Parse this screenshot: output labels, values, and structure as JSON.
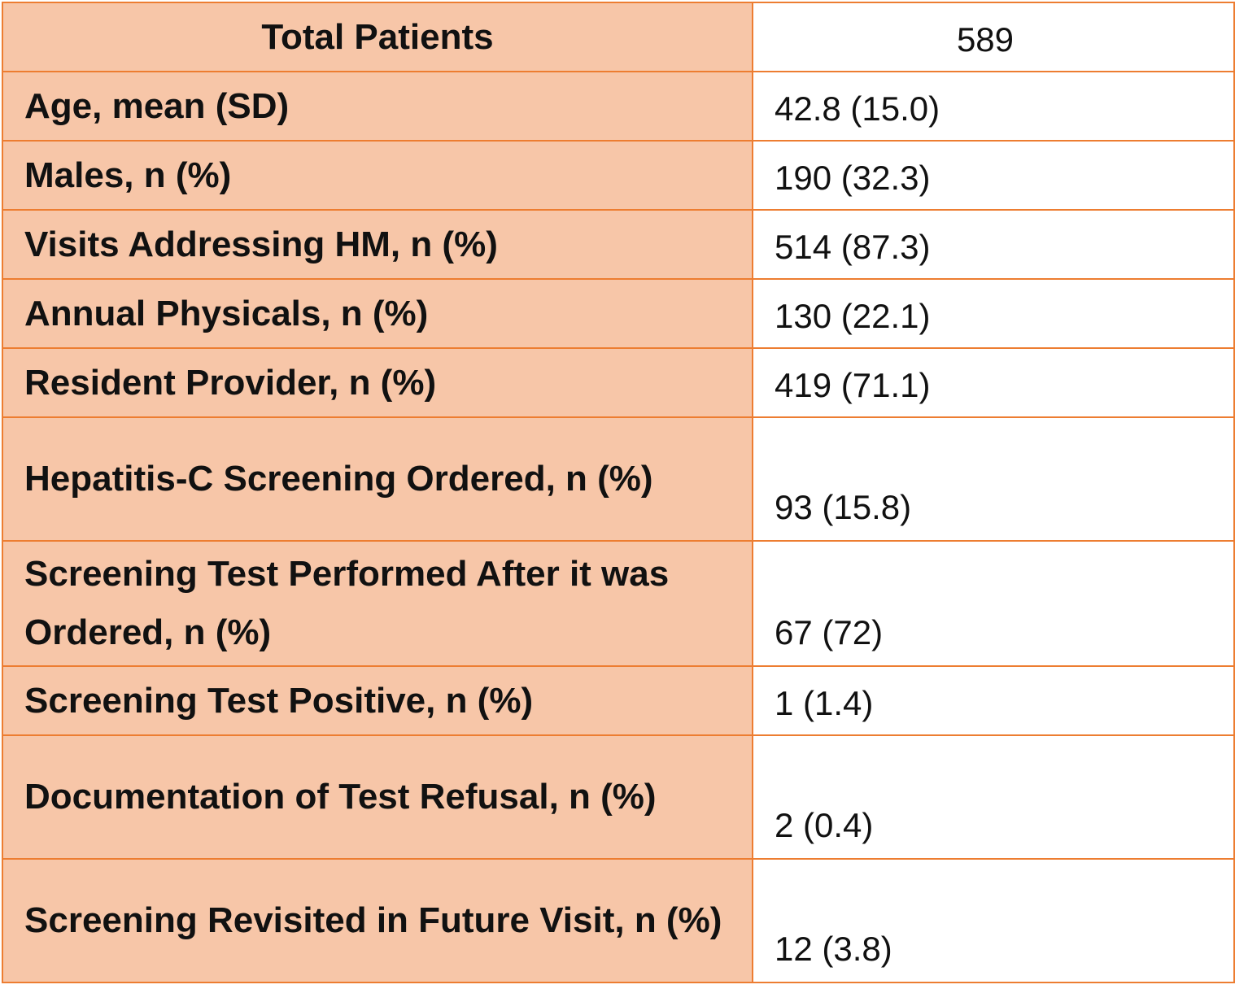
{
  "table": {
    "header": {
      "label": "Total Patients",
      "value": "589"
    },
    "rows": [
      {
        "label": "Age, mean (SD)",
        "value": "42.8 (15.0)"
      },
      {
        "label": "Males, n (%)",
        "value": "190 (32.3)"
      },
      {
        "label": "Visits Addressing HM, n (%)",
        "value": "514 (87.3)"
      },
      {
        "label": "Annual Physicals, n (%)",
        "value": "130 (22.1)"
      },
      {
        "label": "Resident Provider, n (%)",
        "value": "419 (71.1)"
      },
      {
        "label": "Hepatitis-C Screening Ordered, n (%)",
        "value": "93 (15.8)"
      },
      {
        "label": "Screening Test Performed After it was Ordered, n (%)",
        "value": "67 (72)"
      },
      {
        "label": "Screening Test Positive, n (%)",
        "value": "1 (1.4)"
      },
      {
        "label": "Documentation of Test Refusal, n (%)",
        "value": "2 (0.4)"
      },
      {
        "label": "Screening Revisited in Future Visit, n (%)",
        "value": "12 (3.8)"
      }
    ]
  },
  "colors": {
    "label_fill": "#F7C6A8",
    "border": "#ED7D31",
    "value_fill": "#FFFFFF"
  }
}
